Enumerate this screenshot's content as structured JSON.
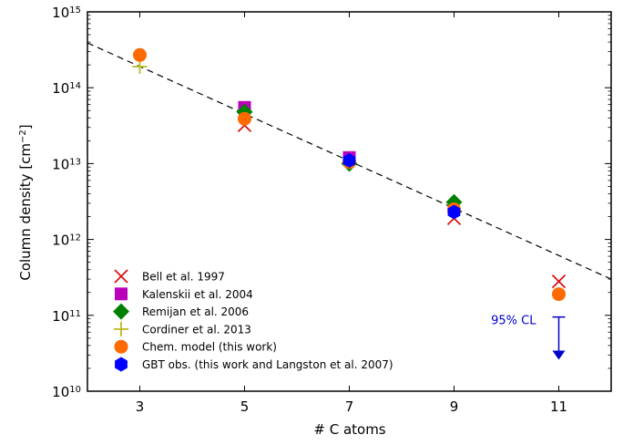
{
  "chart_data": {
    "type": "scatter",
    "xlabel": "# C atoms",
    "ylabel": "Column density [cm⁻²]",
    "ylabel_main": "Column density [cm",
    "ylabel_sup": "−2",
    "ylabel_end": "]",
    "xlim": [
      2,
      12
    ],
    "ylim": [
      10000000000.0,
      1000000000000000.0
    ],
    "yscale": "log",
    "x_ticks": [
      3,
      5,
      7,
      9,
      11
    ],
    "y_ticks": [
      {
        "value": 10000000000.0,
        "base": "10",
        "exp": "10"
      },
      {
        "value": 100000000000.0,
        "base": "10",
        "exp": "11"
      },
      {
        "value": 1000000000000.0,
        "base": "10",
        "exp": "12"
      },
      {
        "value": 10000000000000.0,
        "base": "10",
        "exp": "13"
      },
      {
        "value": 100000000000000.0,
        "base": "10",
        "exp": "14"
      },
      {
        "value": 1000000000000000.0,
        "base": "10",
        "exp": "15"
      }
    ],
    "legend_position": "lower-left",
    "fit_line": {
      "x": [
        2,
        12
      ],
      "y": [
        390000000000000.0,
        300000000000.0
      ],
      "style": "dashed",
      "color": "#000000"
    },
    "series": [
      {
        "name": "Bell et al. 1997",
        "marker": "x",
        "color": "#dd1111",
        "points": [
          {
            "x": 5,
            "y": 32000000000000.0
          },
          {
            "x": 9,
            "y": 1900000000000.0
          },
          {
            "x": 11,
            "y": 280000000000.0
          }
        ]
      },
      {
        "name": "Kalenskii et al. 2004",
        "marker": "square",
        "color": "#bb00bb",
        "points": [
          {
            "x": 5,
            "y": 55000000000000.0
          },
          {
            "x": 7,
            "y": 12000000000000.0
          }
        ]
      },
      {
        "name": "Remijan et al. 2006",
        "marker": "diamond",
        "color": "#008000",
        "points": [
          {
            "x": 5,
            "y": 48000000000000.0
          },
          {
            "x": 7,
            "y": 10000000000000.0
          },
          {
            "x": 9,
            "y": 3100000000000.0
          }
        ]
      },
      {
        "name": "Cordiner et al. 2013",
        "marker": "plus",
        "color": "#bbbb22",
        "points": [
          {
            "x": 3,
            "y": 190000000000000.0
          }
        ]
      },
      {
        "name": "Chem. model (this work)",
        "marker": "circle",
        "color": "#ff6a00",
        "points": [
          {
            "x": 3,
            "y": 270000000000000.0
          },
          {
            "x": 5,
            "y": 39000000000000.0
          },
          {
            "x": 7,
            "y": 10500000000000.0
          },
          {
            "x": 9,
            "y": 2500000000000.0
          },
          {
            "x": 11,
            "y": 190000000000.0
          }
        ]
      },
      {
        "name": "GBT obs. (this work and Langston et al. 2007)",
        "marker": "hexagon",
        "color": "#0000ff",
        "points": [
          {
            "x": 7,
            "y": 11000000000000.0
          },
          {
            "x": 9,
            "y": 2300000000000.0
          }
        ]
      }
    ],
    "upper_limit": {
      "x": 11,
      "y_top": 95000000000.0,
      "y_arrow": 26000000000.0,
      "label": "95% CL",
      "color": "#0000cc"
    }
  }
}
